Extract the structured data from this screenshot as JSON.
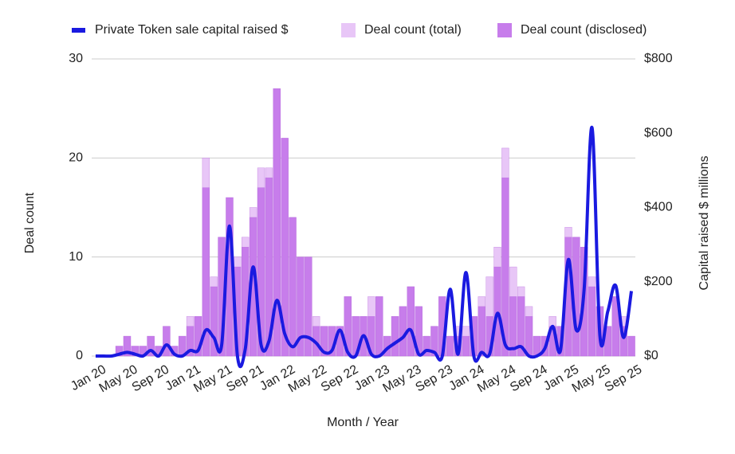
{
  "chart_data": {
    "type": "bar",
    "x_label": "Month / Year",
    "y_label": "Deal count",
    "y2_label": "Capital raised $ millions",
    "categories": [
      "Jan 20",
      null,
      null,
      null,
      "May 20",
      null,
      null,
      null,
      "Sep 20",
      null,
      null,
      null,
      "Jan 21",
      null,
      null,
      null,
      "May 21",
      null,
      null,
      null,
      "Sep 21",
      null,
      null,
      null,
      "Jan 22",
      null,
      null,
      null,
      "May 22",
      null,
      null,
      null,
      "Sep 22",
      null,
      null,
      null,
      "Jan 23",
      null,
      null,
      null,
      "May 23",
      null,
      null,
      null,
      "Sep 23",
      null,
      null,
      null,
      "Jan 24",
      null,
      null,
      null,
      "May 24",
      null,
      null,
      null,
      "Sep 24",
      null,
      null,
      null,
      "Jan 25",
      null,
      null,
      null,
      "May 25",
      null,
      null,
      null,
      "Sep 25"
    ],
    "series": [
      {
        "name": "Private Token sale capital raised $",
        "type": "line",
        "axis": "y2",
        "color": "#1a1ae0",
        "values": [
          0,
          0,
          0,
          5,
          10,
          5,
          0,
          15,
          0,
          30,
          5,
          0,
          15,
          15,
          70,
          50,
          30,
          350,
          0,
          20,
          240,
          30,
          40,
          150,
          60,
          25,
          50,
          50,
          35,
          10,
          15,
          70,
          10,
          0,
          55,
          5,
          0,
          20,
          35,
          50,
          70,
          5,
          15,
          10,
          0,
          180,
          5,
          225,
          0,
          10,
          5,
          115,
          30,
          20,
          25,
          0,
          0,
          20,
          80,
          15,
          260,
          70,
          180,
          615,
          55,
          120,
          190,
          50,
          175
        ]
      },
      {
        "name": "Deal count (total)",
        "type": "bar",
        "color": "#e8c6f7",
        "values": [
          0,
          0,
          0,
          1,
          2,
          1,
          1,
          2,
          1,
          3,
          1,
          2,
          4,
          4,
          20,
          8,
          12,
          16,
          10,
          12,
          15,
          19,
          19,
          27,
          22,
          14,
          10,
          10,
          4,
          3,
          3,
          3,
          6,
          4,
          4,
          6,
          6,
          2,
          4,
          5,
          7,
          5,
          2,
          3,
          6,
          2,
          3,
          3,
          4,
          6,
          8,
          11,
          21,
          9,
          7,
          5,
          2,
          2,
          4,
          3,
          13,
          12,
          11,
          8,
          5,
          3,
          6,
          4,
          2
        ]
      },
      {
        "name": "Deal count (disclosed)",
        "type": "bar",
        "color": "#c77deb",
        "values": [
          0,
          0,
          0,
          1,
          2,
          1,
          1,
          2,
          1,
          3,
          1,
          2,
          3,
          4,
          17,
          7,
          12,
          16,
          9,
          11,
          14,
          17,
          18,
          27,
          22,
          14,
          10,
          10,
          3,
          3,
          3,
          3,
          6,
          4,
          4,
          4,
          6,
          2,
          4,
          5,
          7,
          5,
          2,
          3,
          6,
          2,
          2,
          2,
          4,
          5,
          4,
          9,
          18,
          6,
          6,
          4,
          2,
          2,
          3,
          3,
          12,
          12,
          11,
          7,
          5,
          3,
          6,
          3,
          2
        ]
      }
    ],
    "ylim": [
      0,
      30
    ],
    "yticks": [
      0,
      10,
      20,
      30
    ],
    "y2lim": [
      0,
      800
    ],
    "y2ticks": [
      {
        "value": 0,
        "label": "$0"
      },
      {
        "value": 200,
        "label": "$200"
      },
      {
        "value": 400,
        "label": "$400"
      },
      {
        "value": 600,
        "label": "$600"
      },
      {
        "value": 800,
        "label": "$800"
      }
    ],
    "grid": true,
    "legend": "top"
  }
}
